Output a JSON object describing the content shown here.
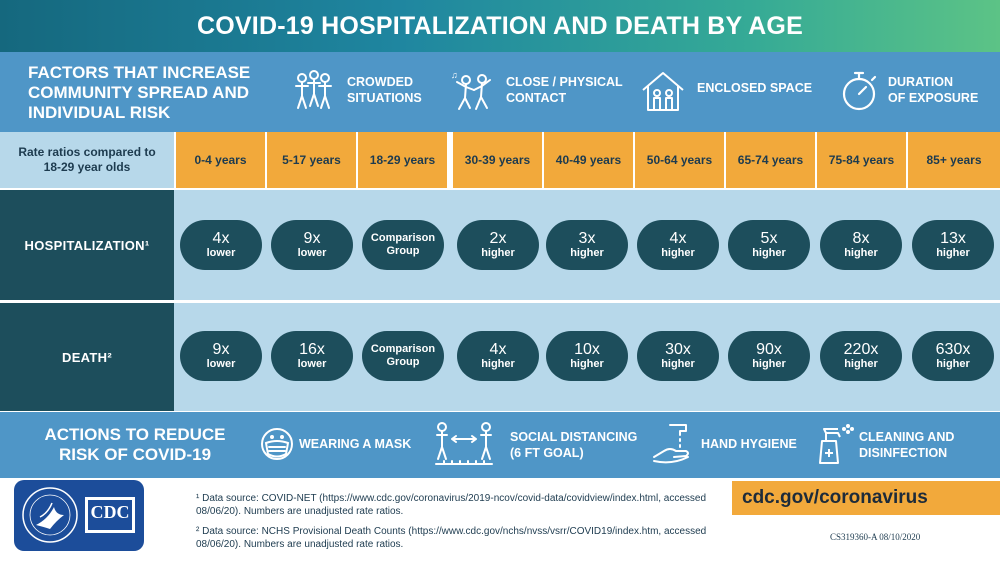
{
  "title": "COVID-19 HOSPITALIZATION AND DEATH BY AGE",
  "factors": {
    "heading": "FACTORS THAT INCREASE COMMUNITY SPREAD AND INDIVIDUAL RISK",
    "items": [
      {
        "label_line1": "CROWDED",
        "label_line2": "SITUATIONS",
        "icon": "crowd-icon"
      },
      {
        "label_line1": "CLOSE / PHYSICAL",
        "label_line2": "CONTACT",
        "icon": "dancing-people-icon"
      },
      {
        "label_line1": "ENCLOSED SPACE",
        "label_line2": "",
        "icon": "house-family-icon"
      },
      {
        "label_line1": "DURATION",
        "label_line2": "OF EXPOSURE",
        "icon": "stopwatch-icon"
      }
    ]
  },
  "table": {
    "rate_label": "Rate ratios compared to 18-29 year olds",
    "ages": [
      "0-4 years",
      "5-17 years",
      "18-29 years",
      "30-39 years",
      "40-49 years",
      "50-64 years",
      "65-74 years",
      "75-84 years",
      "85+ years"
    ],
    "rows": [
      {
        "label": "HOSPITALIZATION¹",
        "cells": [
          {
            "value": "4x",
            "sub": "lower"
          },
          {
            "value": "9x",
            "sub": "lower"
          },
          {
            "comparison": "Comparison Group"
          },
          {
            "value": "2x",
            "sub": "higher"
          },
          {
            "value": "3x",
            "sub": "higher"
          },
          {
            "value": "4x",
            "sub": "higher"
          },
          {
            "value": "5x",
            "sub": "higher"
          },
          {
            "value": "8x",
            "sub": "higher"
          },
          {
            "value": "13x",
            "sub": "higher"
          }
        ]
      },
      {
        "label": "DEATH²",
        "cells": [
          {
            "value": "9x",
            "sub": "lower"
          },
          {
            "value": "16x",
            "sub": "lower"
          },
          {
            "comparison": "Comparison Group"
          },
          {
            "value": "4x",
            "sub": "higher"
          },
          {
            "value": "10x",
            "sub": "higher"
          },
          {
            "value": "30x",
            "sub": "higher"
          },
          {
            "value": "90x",
            "sub": "higher"
          },
          {
            "value": "220x",
            "sub": "higher"
          },
          {
            "value": "630x",
            "sub": "higher"
          }
        ]
      }
    ]
  },
  "actions": {
    "heading": "ACTIONS TO REDUCE RISK OF COVID-19",
    "items": [
      {
        "label_line1": "WEARING A MASK",
        "label_line2": "",
        "icon": "face-mask-icon"
      },
      {
        "label_line1": "SOCIAL DISTANCING",
        "label_line2": "(6 FT GOAL)",
        "icon": "social-distance-icon"
      },
      {
        "label_line1": "HAND HYGIENE",
        "label_line2": "",
        "icon": "hand-wash-icon"
      },
      {
        "label_line1": "CLEANING AND",
        "label_line2": "DISINFECTION",
        "icon": "spray-bottle-icon"
      }
    ]
  },
  "footer": {
    "note1": "¹ Data source: COVID-NET (https://www.cdc.gov/coronavirus/2019-ncov/covid-data/covidview/index.html, accessed 08/06/20). Numbers are unadjusted rate ratios.",
    "note2": "² Data source: NCHS Provisional Death Counts (https://www.cdc.gov/nchs/nvss/vsrr/COVID19/index.htm, accessed 08/06/20). Numbers are unadjusted rate ratios.",
    "site": "cdc.gov/coronavirus",
    "code": "CS319360-A 08/10/2020",
    "logo_text": "CDC"
  },
  "colors": {
    "title_gradient": [
      "#15687e",
      "#5cc386"
    ],
    "band_blue": "#4f96c7",
    "row_dark": "#1d4e5c",
    "age_orange": "#f2a93b",
    "light_blue": "#b7d8ea",
    "logo_blue": "#1c4d9a"
  }
}
